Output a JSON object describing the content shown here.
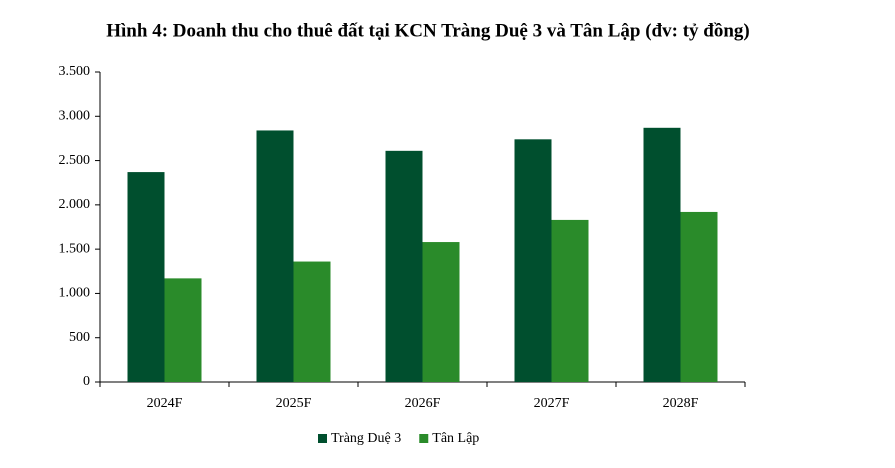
{
  "chart_data": {
    "type": "bar",
    "title": "Hình 4: Doanh thu cho thuê đất tại KCN Tràng Duệ 3 và Tân Lập (đv: tỷ đồng)",
    "categories": [
      "2024F",
      "2025F",
      "2026F",
      "2027F",
      "2028F"
    ],
    "series": [
      {
        "name": "Tràng Duệ 3",
        "color": "#004f2e",
        "values": [
          2370,
          2840,
          2610,
          2740,
          2870
        ]
      },
      {
        "name": "Tân Lập",
        "color": "#2a8b2a",
        "values": [
          1170,
          1360,
          1580,
          1830,
          1920
        ]
      }
    ],
    "ylim": [
      0,
      3500
    ],
    "yticks": [
      0,
      500,
      {
        "value": 1000,
        "label": "1.000"
      },
      {
        "value": 1500,
        "label": "1.500"
      },
      {
        "value": 2000,
        "label": "2.000"
      },
      {
        "value": 2500,
        "label": "2.500"
      },
      {
        "value": 3000,
        "label": "3.000"
      },
      {
        "value": 3500,
        "label": "3.500"
      }
    ],
    "legend": "bottom"
  }
}
